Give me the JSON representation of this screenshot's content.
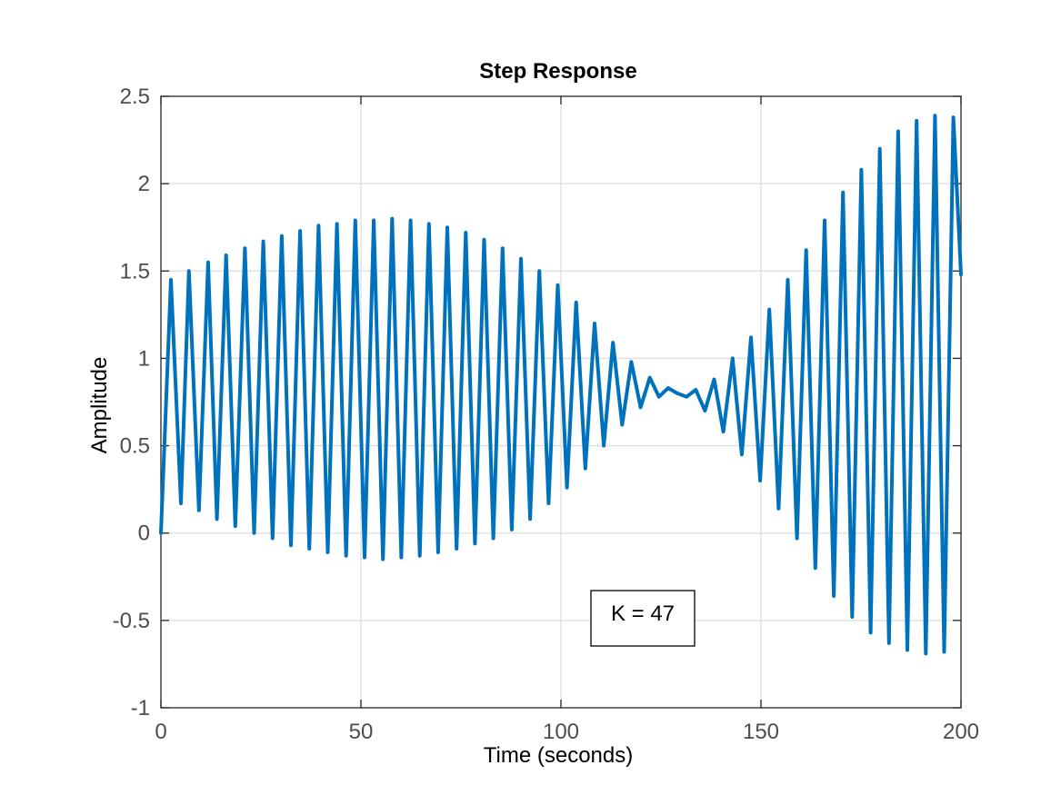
{
  "chart_data": {
    "type": "line",
    "title": "Step Response",
    "xlabel": "Time (seconds)",
    "ylabel": "Amplitude",
    "xlim": [
      0,
      200
    ],
    "ylim": [
      -1,
      2.5
    ],
    "xticks": [
      0,
      50,
      100,
      150,
      200
    ],
    "xtick_labels": [
      "0",
      "50",
      "100",
      "150",
      "200"
    ],
    "yticks": [
      -1,
      -0.5,
      0,
      0.5,
      1,
      1.5,
      2,
      2.5
    ],
    "ytick_labels": [
      "-1",
      "-0.5",
      "0",
      "0.5",
      "1",
      "1.5",
      "2",
      "2.5"
    ],
    "grid": true,
    "line_color": "#0072BD",
    "annotation": "K = 47",
    "series": [
      {
        "x": [
          0,
          2.5,
          5,
          7,
          9.5,
          11.8,
          14,
          16.3,
          18.6,
          21,
          23.3,
          25.6,
          27.9,
          30.2,
          32.5,
          34.8,
          37.1,
          39.4,
          41.7,
          44,
          46.3,
          48.6,
          50.9,
          53.2,
          55.5,
          57.8,
          60.1,
          62.4,
          64.7,
          67,
          69.3,
          71.6,
          73.9,
          76.2,
          78.5,
          80.8,
          83.1,
          85.4,
          87.7,
          90,
          92.3,
          94.6,
          96.9,
          99.2,
          101.5,
          103.8,
          106.1,
          108.4,
          110.7,
          113,
          115.3,
          117.6,
          119.9,
          122.2,
          124.5,
          126.8,
          129.1,
          131.4,
          133.7,
          136,
          138.3,
          140.6,
          142.9,
          145.2,
          147.5,
          149.8,
          152.1,
          154.4,
          156.7,
          159,
          161.3,
          163.6,
          165.9,
          168.2,
          170.5,
          172.8,
          175.1,
          177.4,
          179.7,
          182,
          184.3,
          186.6,
          188.9,
          191.2,
          193.5,
          195.8,
          198.1,
          200
        ],
        "y": [
          0,
          1.45,
          0.17,
          1.5,
          0.13,
          1.55,
          0.08,
          1.59,
          0.04,
          1.63,
          0.0,
          1.67,
          -0.03,
          1.7,
          -0.07,
          1.73,
          -0.09,
          1.76,
          -0.11,
          1.77,
          -0.13,
          1.79,
          -0.14,
          1.79,
          -0.15,
          1.8,
          -0.14,
          1.79,
          -0.13,
          1.77,
          -0.11,
          1.75,
          -0.09,
          1.72,
          -0.06,
          1.68,
          -0.03,
          1.63,
          0.02,
          1.57,
          0.08,
          1.5,
          0.17,
          1.42,
          0.26,
          1.32,
          0.37,
          1.2,
          0.5,
          1.09,
          0.62,
          0.98,
          0.72,
          0.89,
          0.78,
          0.83,
          0.8,
          0.78,
          0.82,
          0.7,
          0.88,
          0.58,
          1.0,
          0.45,
          1.12,
          0.3,
          1.28,
          0.14,
          1.45,
          -0.03,
          1.62,
          -0.2,
          1.79,
          -0.36,
          1.95,
          -0.48,
          2.08,
          -0.57,
          2.2,
          -0.63,
          2.3,
          -0.67,
          2.36,
          -0.69,
          2.39,
          -0.68,
          2.38,
          1.48
        ]
      }
    ]
  }
}
